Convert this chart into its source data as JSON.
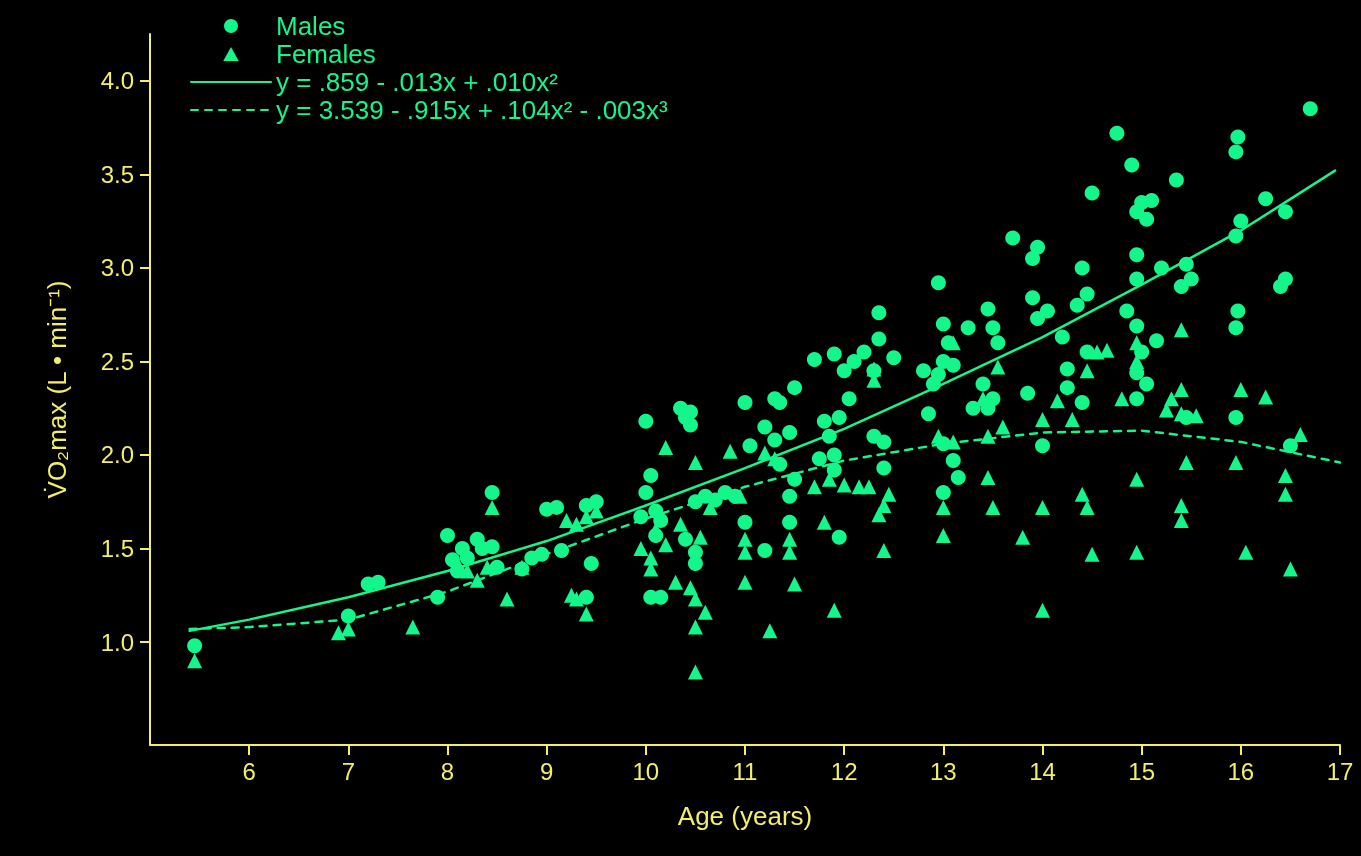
{
  "chart_data": {
    "type": "scatter",
    "xlabel": "Age (years)",
    "ylabel": "V̇O₂max (L • min⁻¹)",
    "xlim": [
      5,
      17
    ],
    "xticks": [
      6,
      7,
      8,
      9,
      10,
      11,
      12,
      13,
      14,
      15,
      16,
      17
    ],
    "ylim": [
      0.45,
      4.25
    ],
    "yticks": [
      {
        "value": 1,
        "label": "1.0"
      },
      {
        "value": 1.5,
        "label": "1.5"
      },
      {
        "value": 2,
        "label": "2.0"
      },
      {
        "value": 2.5,
        "label": "2.5"
      },
      {
        "value": 3,
        "label": "3.0"
      },
      {
        "value": 3.5,
        "label": "3.5"
      },
      {
        "value": 4,
        "label": "4.0"
      }
    ],
    "grid": false,
    "legend": "top left",
    "series": [
      {
        "name": "Males",
        "marker": "circle",
        "color": "#14f58a",
        "x": [
          5.45,
          7.0,
          7.2,
          7.3,
          7.9,
          8.0,
          8.05,
          8.15,
          8.2,
          8.3,
          8.35,
          8.45,
          8.45,
          8.5,
          8.1,
          8.75,
          8.85,
          8.95,
          9.0,
          9.1,
          9.15,
          9.4,
          9.45,
          9.4,
          9.5,
          9.95,
          10.0,
          10.05,
          10.0,
          10.05,
          10.15,
          10.1,
          10.1,
          10.15,
          10.35,
          10.4,
          10.45,
          10.45,
          10.5,
          10.5,
          10.5,
          10.4,
          10.6,
          10.7,
          10.8,
          10.9,
          11.0,
          11.0,
          11.05,
          11.2,
          11.2,
          11.3,
          11.35,
          11.35,
          11.45,
          11.5,
          11.5,
          11.45,
          11.45,
          11.3,
          11.7,
          11.75,
          11.8,
          11.85,
          11.9,
          11.9,
          11.95,
          11.95,
          11.9,
          12.0,
          12.05,
          12.1,
          12.2,
          12.3,
          12.3,
          12.35,
          12.4,
          12.35,
          12.4,
          12.5,
          12.8,
          12.85,
          12.9,
          12.95,
          13.0,
          13.0,
          12.95,
          13.0,
          13.0,
          13.05,
          13.1,
          13.1,
          13.15,
          13.25,
          13.3,
          13.45,
          13.5,
          13.55,
          13.5,
          13.45,
          13.4,
          13.7,
          13.85,
          13.9,
          13.95,
          13.9,
          13.95,
          14.0,
          14.05,
          14.2,
          14.25,
          14.25,
          14.4,
          14.45,
          14.5,
          14.45,
          14.4,
          14.35,
          14.75,
          14.9,
          14.95,
          15.0,
          15.05,
          14.95,
          14.95,
          14.85,
          14.95,
          15.0,
          14.95,
          15.05,
          14.95,
          15.1,
          15.2,
          15.15,
          15.35,
          15.4,
          15.45,
          15.5,
          15.45,
          15.95,
          15.97,
          15.95,
          16.0,
          15.97,
          15.95,
          15.95,
          16.25,
          16.4,
          16.45,
          16.45,
          16.5,
          16.7
        ],
        "values": [
          0.98,
          1.14,
          1.31,
          1.32,
          1.24,
          1.57,
          1.44,
          1.5,
          1.45,
          1.55,
          1.5,
          1.51,
          1.8,
          1.4,
          1.38,
          1.39,
          1.45,
          1.47,
          1.71,
          1.72,
          1.49,
          1.24,
          1.42,
          1.73,
          1.75,
          1.67,
          2.18,
          1.89,
          1.8,
          1.24,
          1.24,
          1.57,
          1.7,
          1.65,
          2.25,
          2.2,
          2.23,
          2.16,
          1.75,
          1.48,
          1.42,
          1.55,
          1.78,
          1.76,
          1.8,
          1.78,
          2.28,
          1.64,
          2.05,
          1.49,
          2.15,
          2.3,
          2.28,
          1.95,
          2.12,
          2.36,
          1.87,
          1.64,
          1.78,
          2.08,
          2.51,
          1.98,
          2.18,
          2.1,
          2.54,
          2.0,
          1.56,
          2.2,
          1.92,
          2.45,
          2.3,
          2.5,
          2.55,
          2.45,
          2.1,
          2.76,
          1.93,
          2.62,
          2.07,
          2.52,
          2.45,
          2.22,
          2.38,
          2.92,
          2.7,
          2.5,
          2.43,
          2.06,
          1.8,
          2.6,
          2.48,
          1.97,
          1.88,
          2.68,
          2.25,
          2.78,
          2.68,
          2.6,
          2.3,
          2.25,
          2.38,
          3.16,
          2.33,
          3.05,
          3.11,
          2.84,
          2.73,
          2.05,
          2.77,
          2.63,
          2.46,
          2.36,
          3.0,
          2.86,
          3.4,
          2.55,
          2.28,
          2.8,
          3.72,
          3.55,
          3.3,
          3.35,
          3.26,
          3.07,
          2.94,
          2.77,
          2.69,
          2.55,
          2.44,
          2.38,
          2.3,
          3.36,
          3.0,
          2.61,
          3.47,
          2.9,
          3.02,
          2.94,
          2.2,
          3.62,
          3.7,
          3.17,
          3.25,
          2.77,
          2.68,
          2.2,
          3.37,
          2.9,
          2.94,
          3.3,
          2.05,
          3.85
        ]
      },
      {
        "name": "Females",
        "marker": "triangle",
        "color": "#14f58a",
        "x": [
          5.45,
          6.9,
          7.0,
          7.65,
          8.1,
          8.2,
          8.3,
          8.4,
          8.45,
          8.6,
          8.75,
          9.2,
          9.25,
          9.3,
          9.4,
          9.4,
          9.5,
          9.3,
          9.95,
          10.05,
          10.05,
          10.1,
          10.2,
          10.2,
          10.3,
          10.35,
          10.45,
          10.5,
          10.5,
          10.5,
          10.5,
          10.6,
          10.55,
          10.65,
          10.85,
          10.95,
          11.0,
          11.0,
          11.0,
          11.25,
          11.3,
          11.45,
          11.45,
          11.5,
          11.2,
          11.7,
          11.8,
          11.85,
          11.9,
          12.0,
          12.15,
          12.3,
          12.3,
          12.35,
          12.4,
          12.45,
          12.4,
          12.25,
          12.95,
          13.0,
          13.0,
          13.1,
          13.1,
          13.4,
          13.45,
          13.45,
          13.5,
          13.55,
          13.6,
          13.8,
          14.0,
          14.0,
          14.0,
          14.15,
          14.3,
          14.45,
          14.4,
          14.45,
          14.5,
          14.55,
          14.65,
          14.8,
          14.95,
          14.95,
          14.95,
          14.95,
          15.25,
          15.3,
          15.4,
          15.4,
          15.4,
          15.45,
          15.4,
          15.4,
          15.55,
          16.0,
          15.95,
          16.05,
          16.25,
          16.45,
          16.45,
          16.5,
          16.6
        ],
        "values": [
          0.9,
          1.05,
          1.07,
          1.08,
          1.42,
          1.38,
          1.33,
          1.4,
          1.72,
          1.23,
          1.4,
          1.65,
          1.25,
          1.23,
          1.15,
          1.67,
          1.7,
          1.63,
          1.5,
          1.39,
          1.45,
          1.6,
          2.04,
          1.52,
          1.32,
          1.63,
          1.29,
          1.96,
          1.23,
          1.08,
          0.84,
          1.16,
          1.56,
          1.72,
          2.02,
          1.78,
          1.32,
          1.55,
          1.48,
          1.06,
          1.98,
          1.55,
          1.48,
          1.31,
          2.01,
          1.83,
          1.64,
          1.87,
          1.17,
          1.84,
          1.83,
          2.46,
          2.4,
          1.68,
          1.73,
          1.79,
          1.49,
          1.83,
          2.1,
          1.72,
          1.57,
          2.6,
          2.07,
          2.3,
          2.1,
          1.88,
          1.72,
          2.47,
          2.15,
          1.56,
          1.72,
          1.17,
          2.19,
          2.29,
          2.19,
          2.45,
          1.79,
          1.72,
          1.47,
          2.55,
          2.56,
          2.3,
          2.6,
          2.5,
          1.87,
          1.48,
          2.24,
          2.3,
          2.67,
          2.35,
          2.22,
          1.96,
          1.73,
          1.65,
          2.21,
          2.35,
          1.96,
          1.48,
          2.31,
          1.89,
          1.79,
          1.39,
          2.11
        ]
      },
      {
        "name": "y = .859 - .013x + .010x²",
        "type": "line",
        "marker": "none",
        "line_style": "solid",
        "color": "#14f58a",
        "x": [
          5.4,
          6,
          7,
          8,
          9,
          10,
          11,
          12,
          13,
          14,
          15,
          16,
          16.95
        ],
        "values": [
          1.06,
          1.12,
          1.24,
          1.38,
          1.54,
          1.73,
          1.93,
          2.14,
          2.38,
          2.63,
          2.91,
          3.2,
          3.52
        ]
      },
      {
        "name": "y = 3.539 - .915x + .104x² - .003x³",
        "type": "line",
        "marker": "none",
        "line_style": "dashed",
        "color": "#14f58a",
        "x": [
          5.4,
          6,
          7,
          8,
          9,
          10,
          11,
          12,
          13,
          14,
          15,
          16,
          17
        ],
        "values": [
          1.07,
          1.08,
          1.12,
          1.27,
          1.47,
          1.66,
          1.83,
          1.97,
          2.06,
          2.12,
          2.13,
          2.07,
          1.96
        ]
      }
    ]
  }
}
